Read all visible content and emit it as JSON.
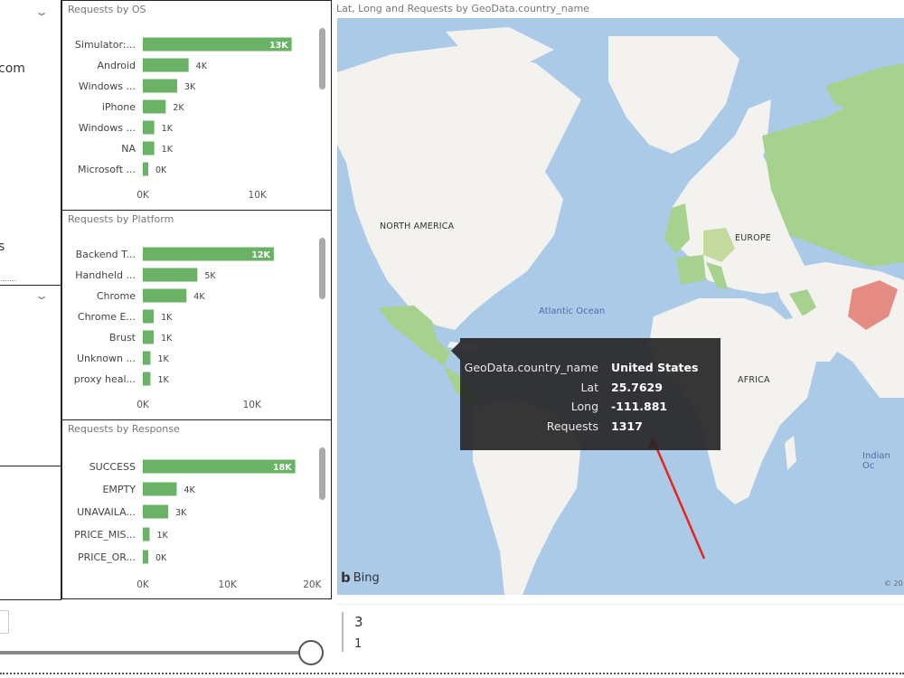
{
  "left_panel": {
    "fragment_top": "com",
    "fragment_mid": "s"
  },
  "charts": {
    "os": {
      "title": "Requests by OS",
      "type": "bar",
      "categories": [
        "Simulator:...",
        "Android",
        "Windows ...",
        "iPhone",
        "Windows ...",
        "NA",
        "Microsoft ..."
      ],
      "values": [
        13000,
        4000,
        3000,
        2000,
        1000,
        1000,
        300
      ],
      "value_labels": [
        "13K",
        "4K",
        "3K",
        "2K",
        "1K",
        "1K",
        "0K"
      ],
      "ticks": [
        {
          "value": 0,
          "label": "0K"
        },
        {
          "value": 10000,
          "label": "10K"
        }
      ],
      "xmax": 13500,
      "color": "#6ab366"
    },
    "platform": {
      "title": "Requests by Platform",
      "type": "bar",
      "categories": [
        "Backend T...",
        "Handheld ...",
        "Chrome",
        "Chrome E...",
        "Brust",
        "Unknown ...",
        "proxy heal..."
      ],
      "values": [
        12000,
        5000,
        4000,
        1000,
        1000,
        700,
        700
      ],
      "value_labels": [
        "12K",
        "5K",
        "4K",
        "1K",
        "1K",
        "1K",
        "1K"
      ],
      "ticks": [
        {
          "value": 0,
          "label": "0K"
        },
        {
          "value": 10000,
          "label": "10K"
        }
      ],
      "xmax": 13500,
      "color": "#6ab366"
    },
    "response": {
      "title": "Requests by Response",
      "type": "bar",
      "categories": [
        "SUCCESS",
        "EMPTY",
        "UNAVAILA...",
        "PRICE_MIS...",
        "PRICE_OR..."
      ],
      "values": [
        18000,
        4000,
        3000,
        800,
        400
      ],
      "value_labels": [
        "18K",
        "4K",
        "3K",
        "1K",
        "0K"
      ],
      "ticks": [
        {
          "value": 0,
          "label": "0K"
        },
        {
          "value": 10000,
          "label": "10K"
        },
        {
          "value": 20000,
          "label": "20K"
        }
      ],
      "xmax": 20500,
      "color": "#6ab366"
    }
  },
  "map": {
    "title": "Lat, Long and Requests by GeoData.country_name",
    "labels": {
      "north_america": "NORTH AMERICA",
      "europe": "EUROPE",
      "africa": "AFRICA",
      "atlantic": "Atlantic Ocean",
      "indian": "Indian Oc"
    },
    "attribution": "Bing",
    "copyright": "© 20",
    "tooltip": {
      "rows": [
        {
          "key": "GeoData.country_name",
          "value": "United States"
        },
        {
          "key": "Lat",
          "value": "25.7629"
        },
        {
          "key": "Long",
          "value": "-111.881"
        },
        {
          "key": "Requests",
          "value": "1317"
        }
      ]
    }
  },
  "card": {
    "value_top": "3",
    "value_bottom": "1"
  },
  "colors": {
    "ocean": "#aacae8",
    "land": "#f4f2ee",
    "highlight_green": "#a7d18f",
    "highlight_red": "#e48b83",
    "bar_green": "#6ab366",
    "annotation_red": "#e8221c"
  },
  "slider": {
    "fraction": 1.0
  }
}
